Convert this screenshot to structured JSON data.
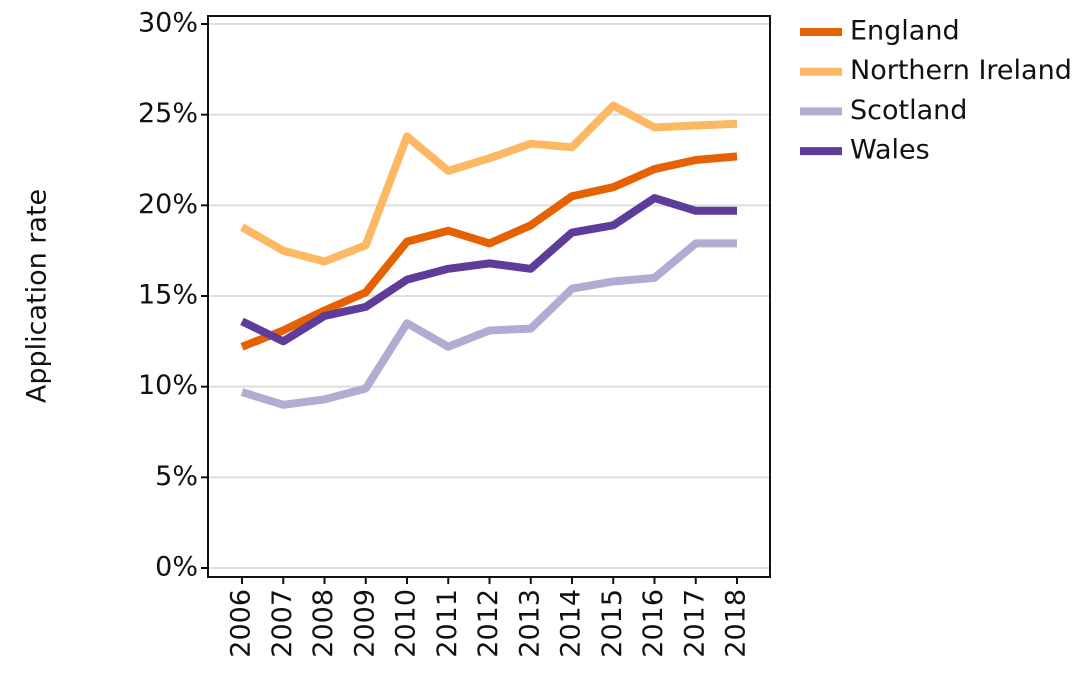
{
  "chart_data": {
    "type": "line",
    "y_label": "Application rate",
    "x": [
      "2006",
      "2007",
      "2008",
      "2009",
      "2010",
      "2011",
      "2012",
      "2013",
      "2014",
      "2015",
      "2016",
      "2017",
      "2018"
    ],
    "series": [
      {
        "name": "England",
        "color": "#e66101",
        "values": [
          12.2,
          13.1,
          14.2,
          15.2,
          18.0,
          18.6,
          17.9,
          18.9,
          20.5,
          21.0,
          22.0,
          22.5,
          22.7
        ]
      },
      {
        "name": "Northern Ireland",
        "color": "#fdb863",
        "values": [
          18.8,
          17.5,
          16.9,
          17.8,
          23.8,
          21.9,
          22.6,
          23.4,
          23.2,
          25.5,
          24.3,
          24.4,
          24.5
        ]
      },
      {
        "name": "Scotland",
        "color": "#b2abd2",
        "values": [
          9.7,
          9.0,
          9.3,
          9.9,
          13.5,
          12.2,
          13.1,
          13.2,
          15.4,
          15.8,
          16.0,
          17.9,
          17.9
        ]
      },
      {
        "name": "Wales",
        "color": "#5e3c99",
        "values": [
          13.6,
          12.5,
          13.9,
          14.4,
          15.9,
          16.5,
          16.8,
          16.5,
          18.5,
          18.9,
          20.4,
          19.7,
          19.7
        ]
      }
    ],
    "ylim": [
      0,
      30
    ],
    "yticks": [
      {
        "value": 0,
        "label": "0%"
      },
      {
        "value": 5,
        "label": "5%"
      },
      {
        "value": 10,
        "label": "10%"
      },
      {
        "value": 15,
        "label": "15%"
      },
      {
        "value": 20,
        "label": "20%"
      },
      {
        "value": 25,
        "label": "25%"
      },
      {
        "value": 30,
        "label": "30%"
      }
    ],
    "grid": true,
    "legend": "right"
  }
}
